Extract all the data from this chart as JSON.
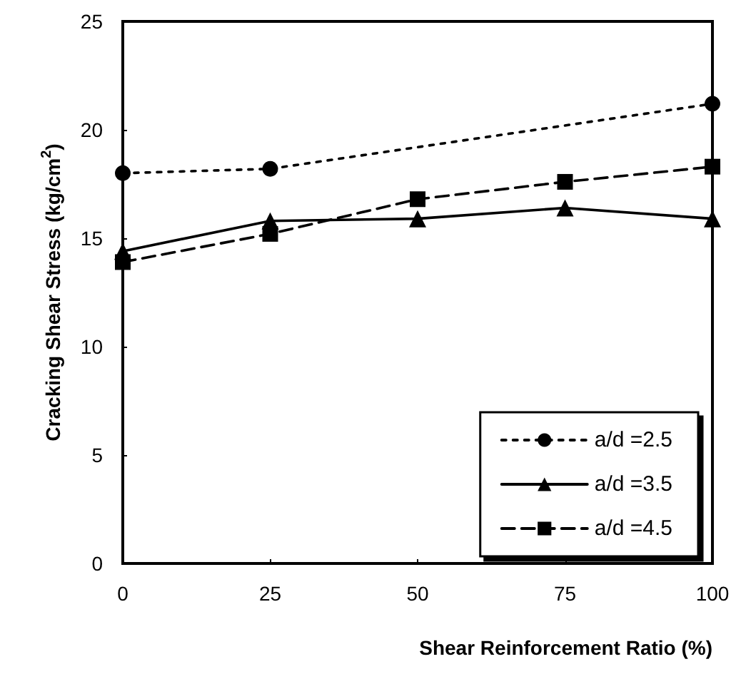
{
  "chart_data": {
    "type": "line",
    "xlabel": "Shear Reinforcement Ratio (%)",
    "ylabel": "Cracking Shear Stress (kg/cm$^{2}$)",
    "x": [
      0,
      25,
      50,
      75,
      100
    ],
    "xlim": [
      0,
      100
    ],
    "xticks": [
      0,
      25,
      50,
      75,
      100
    ],
    "ylim": [
      0,
      25
    ],
    "yticks": [
      0,
      5,
      10,
      15,
      20,
      25
    ],
    "grid": false,
    "legend": "bottom right",
    "series": [
      {
        "name": "a/d =2.5",
        "color": "#000000",
        "marker": "circle",
        "line_style": "dotted",
        "values": [
          18.0,
          18.2,
          null,
          null,
          21.2
        ]
      },
      {
        "name": "a/d =3.5",
        "color": "#000000",
        "marker": "triangle",
        "line_style": "solid",
        "values": [
          14.4,
          15.8,
          15.9,
          16.4,
          15.9
        ]
      },
      {
        "name": "a/d =4.5",
        "color": "#000000",
        "marker": "square",
        "line_style": "dashed",
        "values": [
          13.9,
          15.2,
          16.8,
          17.6,
          18.3
        ]
      }
    ]
  }
}
